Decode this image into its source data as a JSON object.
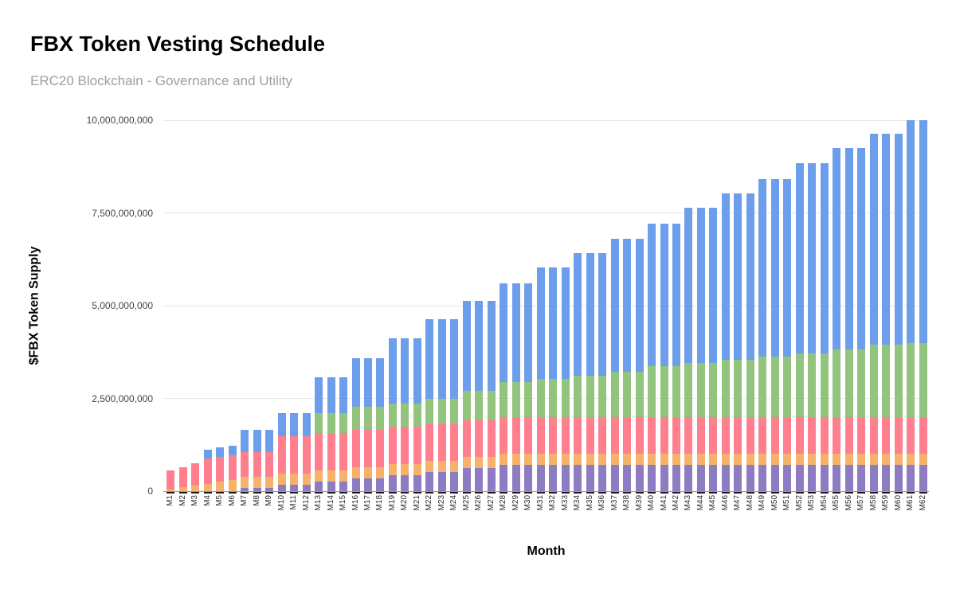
{
  "header": {
    "title": "FBX Token Vesting Schedule",
    "subtitle": "ERC20 Blockchain - Governance and Utility"
  },
  "chart_data": {
    "type": "bar",
    "stacked": true,
    "title": "FBX Token Vesting Schedule",
    "subtitle": "ERC20 Blockchain - Governance and Utility",
    "xlabel": "Month",
    "ylabel": "$FBX Token Supply",
    "ylim": [
      0,
      10000000000
    ],
    "grid": true,
    "legend": false,
    "yticks": [
      {
        "value": 0,
        "label": "0"
      },
      {
        "value": 2500000000,
        "label": "2,500,000,000"
      },
      {
        "value": 5000000000,
        "label": "5,000,000,000"
      },
      {
        "value": 7500000000,
        "label": "7,500,000,000"
      },
      {
        "value": 10000000000,
        "label": "10,000,000,000"
      }
    ],
    "categories": [
      "M1",
      "M2",
      "M3",
      "M4",
      "M5",
      "M6",
      "M7",
      "M8",
      "M9",
      "M10",
      "M11",
      "M12",
      "M13",
      "M14",
      "M15",
      "M16",
      "M17",
      "M18",
      "M19",
      "M20",
      "M21",
      "M22",
      "M23",
      "M24",
      "M25",
      "M26",
      "M27",
      "M28",
      "M29",
      "M30",
      "M31",
      "M32",
      "M33",
      "M34",
      "M35",
      "M36",
      "M37",
      "M38",
      "M39",
      "M40",
      "M41",
      "M42",
      "M43",
      "M44",
      "M45",
      "M46",
      "M47",
      "M48",
      "M49",
      "M50",
      "M51",
      "M52",
      "M53",
      "M54",
      "M55",
      "M56",
      "M57",
      "M58",
      "M59",
      "M60",
      "M61",
      "M62"
    ],
    "series": [
      {
        "name": "purple",
        "color": "#8e7cc3",
        "values": [
          0,
          0,
          0,
          0,
          0,
          0,
          87500000,
          87500000,
          87500000,
          175000000,
          175000000,
          175000000,
          262500000,
          262500000,
          262500000,
          350000000,
          350000000,
          350000000,
          437500000,
          437500000,
          437500000,
          525000000,
          525000000,
          525000000,
          612500000,
          612500000,
          612500000,
          700000000,
          700000000,
          700000000,
          700000000,
          700000000,
          700000000,
          700000000,
          700000000,
          700000000,
          700000000,
          700000000,
          700000000,
          700000000,
          700000000,
          700000000,
          700000000,
          700000000,
          700000000,
          700000000,
          700000000,
          700000000,
          700000000,
          700000000,
          700000000,
          700000000,
          700000000,
          700000000,
          700000000,
          700000000,
          700000000,
          700000000,
          700000000,
          700000000,
          700000000,
          700000000
        ]
      },
      {
        "name": "orange",
        "color": "#f6b26b",
        "values": [
          50000000,
          100000000,
          150000000,
          200000000,
          250000000,
          300000000,
          300000000,
          300000000,
          300000000,
          300000000,
          300000000,
          300000000,
          300000000,
          300000000,
          300000000,
          300000000,
          300000000,
          300000000,
          300000000,
          300000000,
          300000000,
          300000000,
          300000000,
          300000000,
          300000000,
          300000000,
          300000000,
          300000000,
          300000000,
          300000000,
          300000000,
          300000000,
          300000000,
          300000000,
          300000000,
          300000000,
          300000000,
          300000000,
          300000000,
          300000000,
          300000000,
          300000000,
          300000000,
          300000000,
          300000000,
          300000000,
          300000000,
          300000000,
          300000000,
          300000000,
          300000000,
          300000000,
          300000000,
          300000000,
          300000000,
          300000000,
          300000000,
          300000000,
          300000000,
          300000000,
          300000000,
          300000000
        ]
      },
      {
        "name": "pink",
        "color": "#ff7f8e",
        "values": [
          500000000,
          550000000,
          600000000,
          670000000,
          670000000,
          670000000,
          670000000,
          670000000,
          670000000,
          1000000000,
          1000000000,
          1000000000,
          1000000000,
          1000000000,
          1000000000,
          1000000000,
          1000000000,
          1000000000,
          1000000000,
          1000000000,
          1000000000,
          1000000000,
          1000000000,
          1000000000,
          1000000000,
          1000000000,
          1000000000,
          1000000000,
          1000000000,
          1000000000,
          1000000000,
          1000000000,
          1000000000,
          1000000000,
          1000000000,
          1000000000,
          1000000000,
          1000000000,
          1000000000,
          1000000000,
          1000000000,
          1000000000,
          1000000000,
          1000000000,
          1000000000,
          1000000000,
          1000000000,
          1000000000,
          1000000000,
          1000000000,
          1000000000,
          1000000000,
          1000000000,
          1000000000,
          1000000000,
          1000000000,
          1000000000,
          1000000000,
          1000000000,
          1000000000,
          1000000000,
          1000000000
        ]
      },
      {
        "name": "green",
        "color": "#93c47d",
        "values": [
          0,
          0,
          0,
          0,
          0,
          0,
          0,
          0,
          0,
          0,
          0,
          0,
          550000000,
          550000000,
          550000000,
          630000000,
          630000000,
          630000000,
          630000000,
          630000000,
          630000000,
          660000000,
          660000000,
          660000000,
          800000000,
          800000000,
          800000000,
          935000000,
          935000000,
          935000000,
          1020000000,
          1020000000,
          1020000000,
          1110000000,
          1110000000,
          1110000000,
          1220000000,
          1220000000,
          1220000000,
          1360000000,
          1360000000,
          1360000000,
          1450000000,
          1450000000,
          1450000000,
          1540000000,
          1540000000,
          1540000000,
          1620000000,
          1620000000,
          1620000000,
          1720000000,
          1720000000,
          1720000000,
          1830000000,
          1830000000,
          1830000000,
          1940000000,
          1940000000,
          1940000000,
          2000000000,
          2000000000
        ]
      },
      {
        "name": "blue",
        "color": "#6d9eeb",
        "values": [
          0,
          0,
          0,
          250000000,
          250000000,
          250000000,
          600000000,
          600000000,
          600000000,
          635000000,
          635000000,
          635000000,
          950000000,
          950000000,
          950000000,
          1310000000,
          1310000000,
          1310000000,
          1760000000,
          1760000000,
          1760000000,
          2140000000,
          2140000000,
          2140000000,
          2410000000,
          2410000000,
          2410000000,
          2665000000,
          2665000000,
          2665000000,
          3000000000,
          3000000000,
          3000000000,
          3300000000,
          3300000000,
          3300000000,
          3590000000,
          3590000000,
          3590000000,
          3860000000,
          3860000000,
          3860000000,
          4180000000,
          4180000000,
          4180000000,
          4490000000,
          4490000000,
          4490000000,
          4800000000,
          4800000000,
          4800000000,
          5120000000,
          5120000000,
          5120000000,
          5410000000,
          5410000000,
          5410000000,
          5700000000,
          5700000000,
          5700000000,
          6000000000,
          6000000000
        ]
      }
    ]
  }
}
